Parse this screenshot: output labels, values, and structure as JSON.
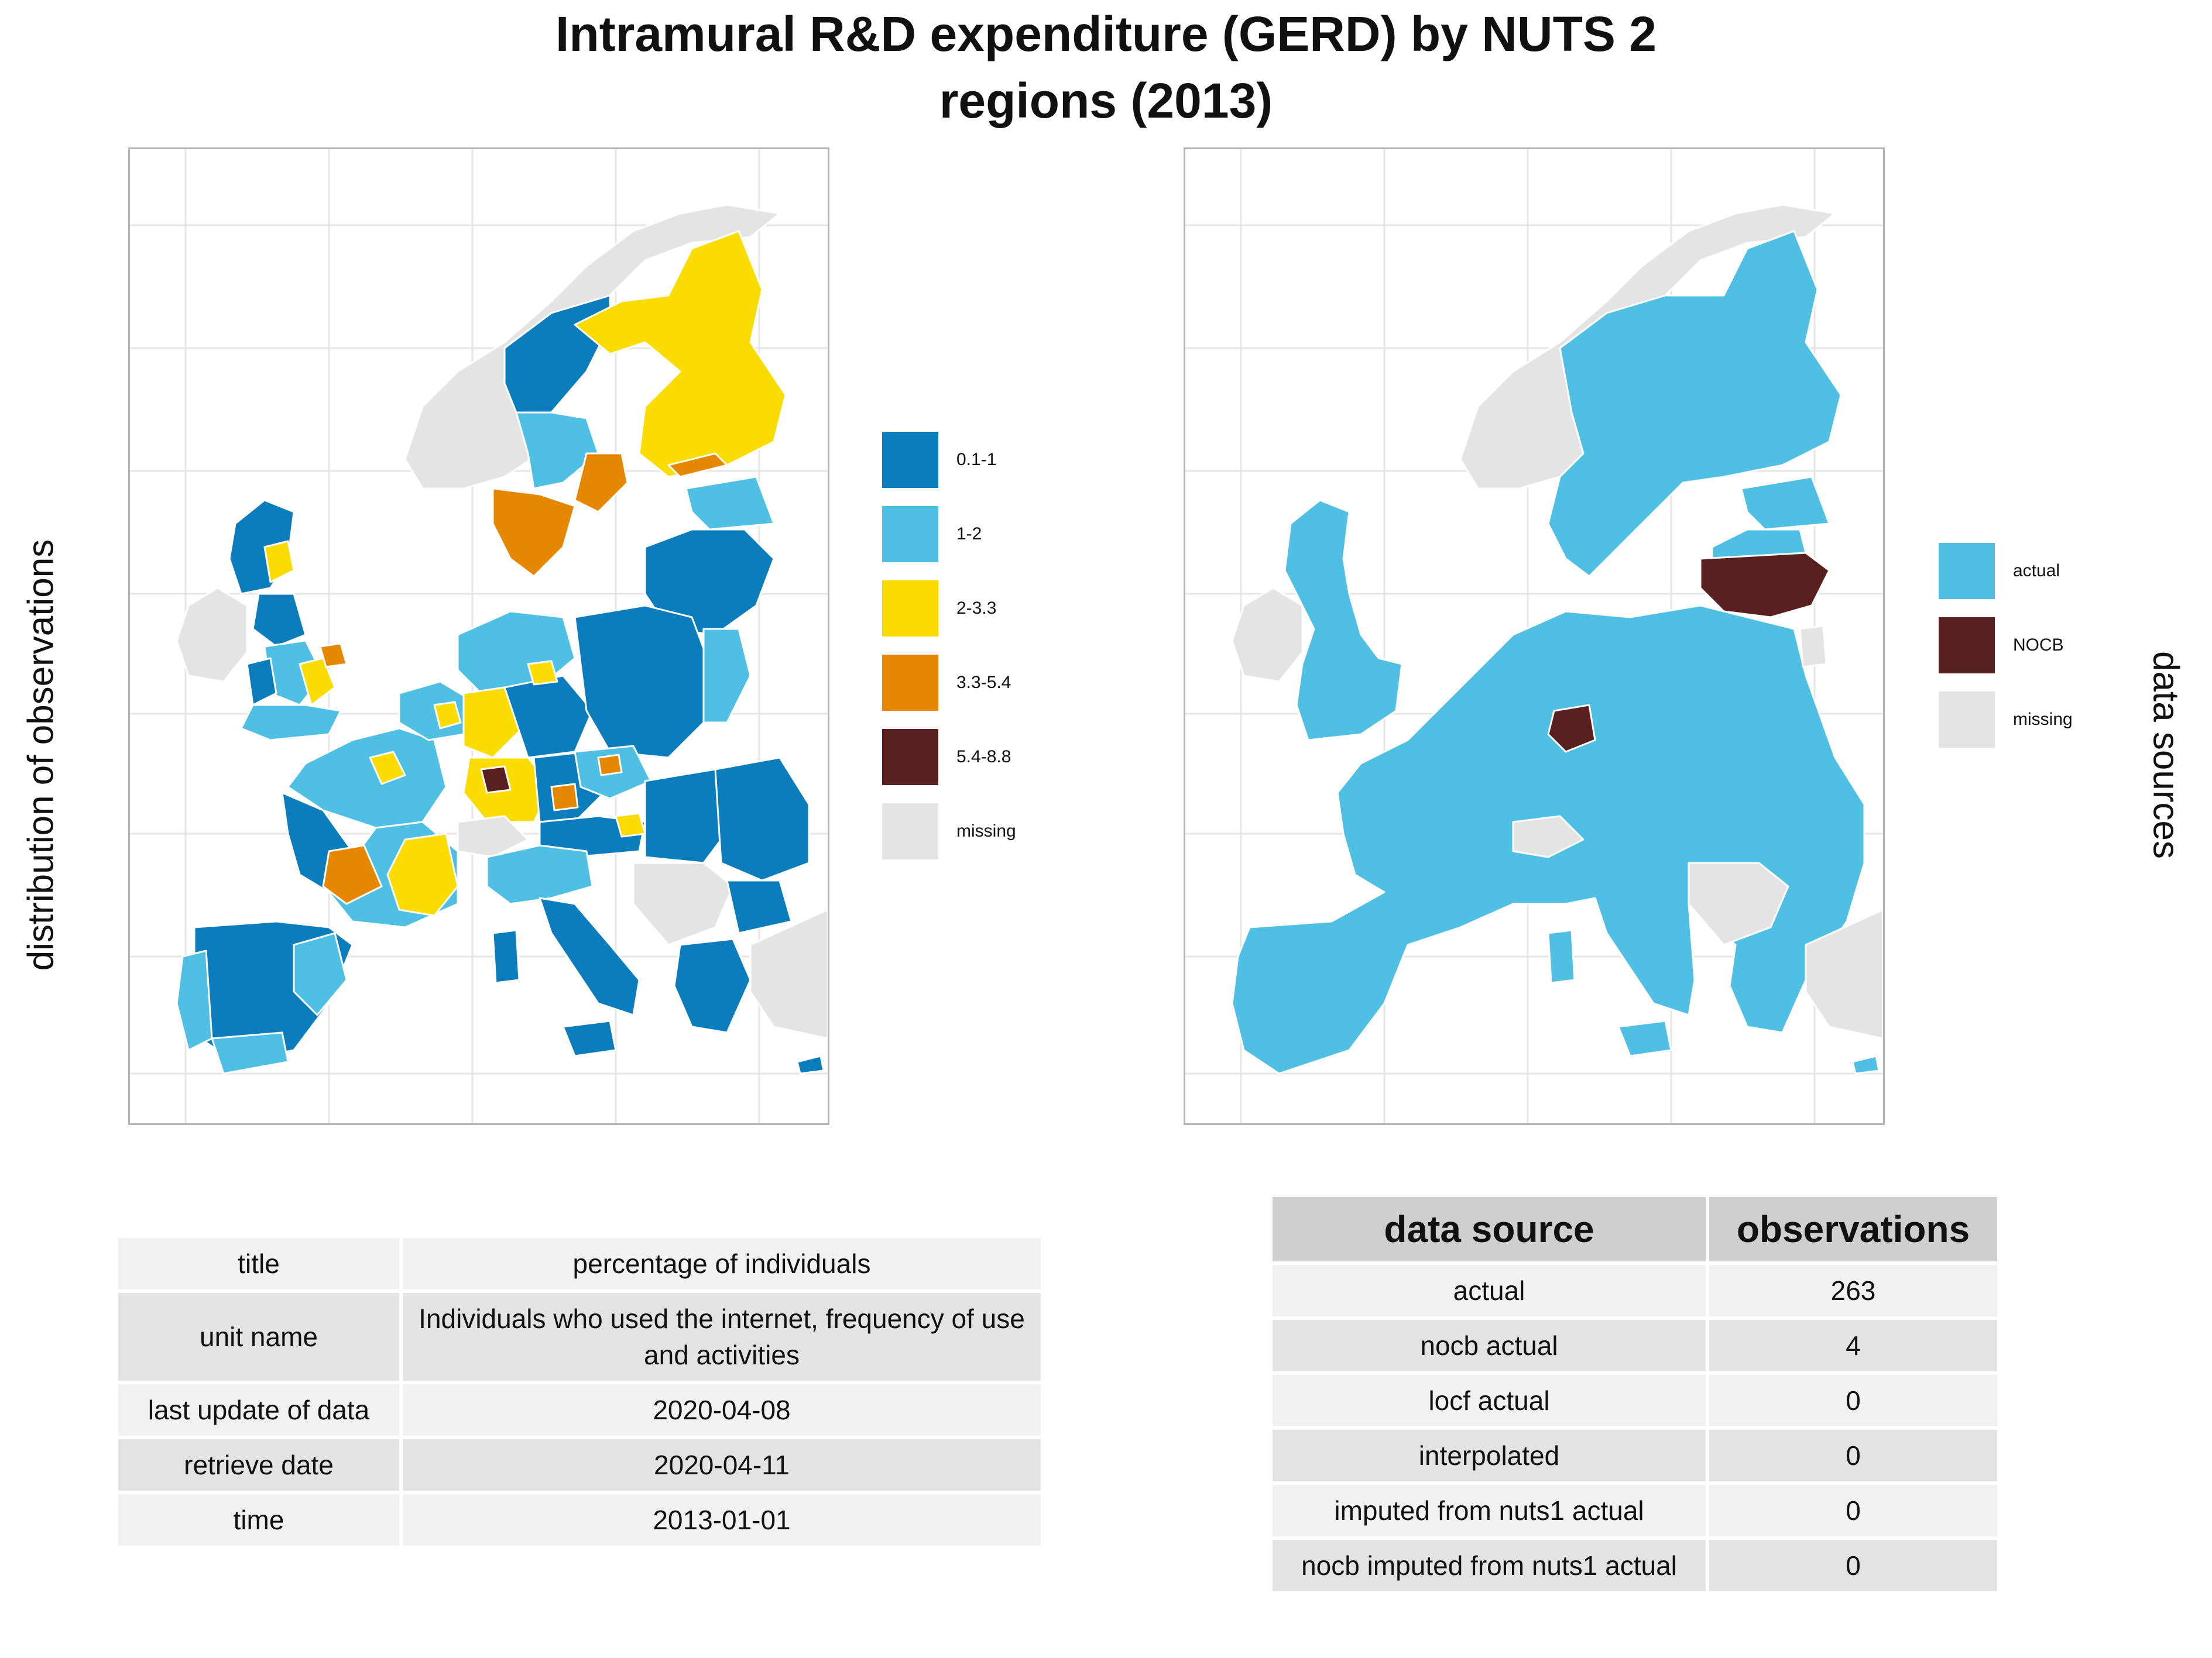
{
  "title": {
    "line1": "Intramural R&D expenditure (GERD) by NUTS 2",
    "line2": "regions (2013)"
  },
  "left_axis_label": "distribution of observations",
  "right_axis_label": "data sources",
  "colors": {
    "c0_1": "#0b7dbc",
    "c1_2": "#4fc0e3",
    "c2_33": "#fbdc00",
    "c33_54": "#e68700",
    "c54_88": "#5a2020",
    "missing": "#e4e4e4",
    "actual": "#4fc0e3",
    "nocb": "#5a2020",
    "grid": "#e6e6e6",
    "border": "#ffffff"
  },
  "legend_left": [
    {
      "label": "0.1-1",
      "color": "#0b7dbc"
    },
    {
      "label": "1-2",
      "color": "#4fc0e3"
    },
    {
      "label": "2-3.3",
      "color": "#fbdc00"
    },
    {
      "label": "3.3-5.4",
      "color": "#e68700"
    },
    {
      "label": "5.4-8.8",
      "color": "#5a2020"
    },
    {
      "label": "missing",
      "color": "#e4e4e4"
    }
  ],
  "legend_right": [
    {
      "label": "actual",
      "color": "#4fc0e3"
    },
    {
      "label": "NOCB",
      "color": "#5a2020"
    },
    {
      "label": "missing",
      "color": "#e4e4e4"
    }
  ],
  "meta_table": [
    {
      "key": "title",
      "value": "percentage of individuals"
    },
    {
      "key": "unit name",
      "value": "Individuals who used the internet, frequency of use and activities"
    },
    {
      "key": "last update of data",
      "value": "2020-04-08"
    },
    {
      "key": "retrieve date",
      "value": "2020-04-11"
    },
    {
      "key": "time",
      "value": "2013-01-01"
    }
  ],
  "source_table": {
    "headers": [
      "data source",
      "observations"
    ],
    "rows": [
      {
        "source": "actual",
        "count": "263"
      },
      {
        "source": "nocb actual",
        "count": "4"
      },
      {
        "source": "locf actual",
        "count": "0"
      },
      {
        "source": "interpolated",
        "count": "0"
      },
      {
        "source": "imputed from nuts1 actual",
        "count": "0"
      },
      {
        "source": "nocb imputed from nuts1 actual",
        "count": "0"
      }
    ]
  }
}
